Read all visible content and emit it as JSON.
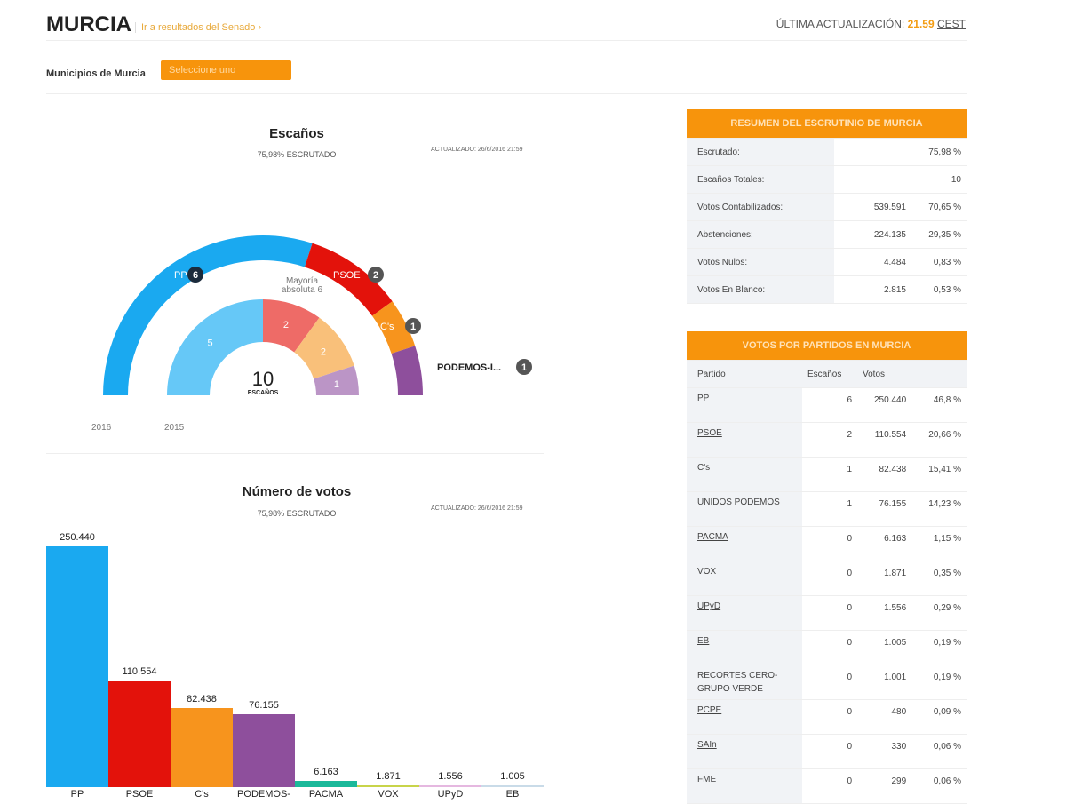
{
  "header": {
    "title": "MURCIA",
    "senado_link": "Ir a resultados del Senado ›",
    "update_label": "ÚLTIMA ACTUALIZACIÓN:",
    "update_time": "21.59",
    "update_zone": "CEST"
  },
  "municipios": {
    "label": "Municipios de Murcia",
    "select_value": "Seleccione uno"
  },
  "seats_chart": {
    "title": "Escaños",
    "subtitle": "75,98% ESCRUTADO",
    "updated": "ACTUALIZADO: 26/6/2016 21:59",
    "majority": "Mayoría absoluta 6",
    "total": "10",
    "total_label": "ESCAÑOS",
    "year_outer": "2016",
    "year_inner": "2015"
  },
  "chart_data": [
    {
      "type": "pie",
      "title": "Escaños",
      "series": [
        {
          "name": "2016",
          "categories": [
            "PP",
            "PSOE",
            "C's",
            "PODEMOS-I..."
          ],
          "values": [
            6,
            2,
            1,
            1
          ],
          "colors": [
            "#1aa9f0",
            "#e3120b",
            "#f7941d",
            "#8e4f9c"
          ]
        },
        {
          "name": "2015",
          "categories": [
            "PP",
            "PSOE",
            "C's",
            "PODEMOS"
          ],
          "values": [
            5,
            2,
            2,
            1
          ],
          "colors": [
            "#66c8f7",
            "#ee6b67",
            "#f9c07a",
            "#bb95c6"
          ]
        }
      ]
    },
    {
      "type": "bar",
      "title": "Número de votos",
      "subtitle": "75,98% ESCRUTADO",
      "updated": "ACTUALIZADO: 26/6/2016 21:59",
      "categories": [
        "PP",
        "PSOE",
        "C's",
        "PODEMOS-",
        "PACMA",
        "VOX",
        "UPyD",
        "EB"
      ],
      "values": [
        250440,
        110554,
        82438,
        76155,
        6163,
        1871,
        1556,
        1005
      ],
      "labels": [
        "250.440",
        "110.554",
        "82.438",
        "76.155",
        "6.163",
        "1.871",
        "1.556",
        "1.005"
      ],
      "colors": [
        "#1aa9f0",
        "#e3120b",
        "#f7941d",
        "#8e4f9c",
        "#1bb99a",
        "#c8d44a",
        "#e5b8e0",
        "#c9dbe8"
      ]
    }
  ],
  "summary": {
    "title": "RESUMEN DEL ESCRUTINIO DE MURCIA",
    "rows": [
      {
        "label": "Escrutado:",
        "a": "",
        "b": "75,98 %"
      },
      {
        "label": "Escaños Totales:",
        "a": "",
        "b": "10"
      },
      {
        "label": "Votos Contabilizados:",
        "a": "539.591",
        "b": "70,65 %"
      },
      {
        "label": "Abstenciones:",
        "a": "224.135",
        "b": "29,35 %"
      },
      {
        "label": "Votos Nulos:",
        "a": "4.484",
        "b": "0,83 %"
      },
      {
        "label": "Votos En Blanco:",
        "a": "2.815",
        "b": "0,53 %"
      }
    ]
  },
  "parties": {
    "title": "VOTOS POR PARTIDOS EN MURCIA",
    "headers": [
      "Partido",
      "Escaños",
      "Votos"
    ],
    "rows": [
      {
        "name": "PP",
        "seats": "6",
        "votes": "250.440",
        "pct": "46,8 %",
        "u": true
      },
      {
        "name": "PSOE",
        "seats": "2",
        "votes": "110.554",
        "pct": "20,66 %",
        "u": true
      },
      {
        "name": "C's",
        "seats": "1",
        "votes": "82.438",
        "pct": "15,41 %",
        "u": false
      },
      {
        "name": "UNIDOS PODEMOS",
        "seats": "1",
        "votes": "76.155",
        "pct": "14,23 %",
        "u": false
      },
      {
        "name": "PACMA",
        "seats": "0",
        "votes": "6.163",
        "pct": "1,15 %",
        "u": true
      },
      {
        "name": "VOX",
        "seats": "0",
        "votes": "1.871",
        "pct": "0,35 %",
        "u": false
      },
      {
        "name": "UPyD",
        "seats": "0",
        "votes": "1.556",
        "pct": "0,29 %",
        "u": true
      },
      {
        "name": "EB",
        "seats": "0",
        "votes": "1.005",
        "pct": "0,19 %",
        "u": true
      },
      {
        "name": "RECORTES CERO-GRUPO VERDE",
        "seats": "0",
        "votes": "1.001",
        "pct": "0,19 %",
        "u": false
      },
      {
        "name": "PCPE",
        "seats": "0",
        "votes": "480",
        "pct": "0,09 %",
        "u": true
      },
      {
        "name": "SAIn",
        "seats": "0",
        "votes": "330",
        "pct": "0,06 %",
        "u": true
      },
      {
        "name": "FME",
        "seats": "0",
        "votes": "299",
        "pct": "0,06 %",
        "u": false
      }
    ]
  }
}
